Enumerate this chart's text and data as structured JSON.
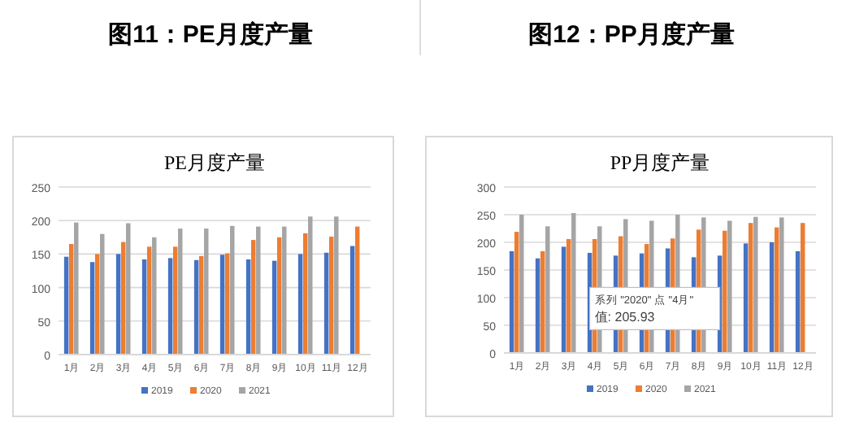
{
  "chart_data": [
    {
      "type": "bar",
      "title": "图11：PE月度产量",
      "subtitle": "PE月度产量",
      "categories": [
        "1月",
        "2月",
        "3月",
        "4月",
        "5月",
        "6月",
        "7月",
        "8月",
        "9月",
        "10月",
        "11月",
        "12月"
      ],
      "ylim": [
        0,
        250
      ],
      "yticks": [
        0,
        50,
        100,
        150,
        200,
        250
      ],
      "grid": "y",
      "legend": "bottom",
      "series": [
        {
          "name": "2019",
          "color": "#4472c4",
          "values": [
            146,
            138,
            150,
            142,
            144,
            141,
            149,
            142,
            140,
            150,
            152,
            162
          ]
        },
        {
          "name": "2020",
          "color": "#ed7d31",
          "values": [
            165,
            150,
            168,
            161,
            161,
            147,
            151,
            171,
            175,
            181,
            176,
            191
          ]
        },
        {
          "name": "2021",
          "color": "#a5a5a5",
          "values": [
            197,
            180,
            196,
            175,
            188,
            188,
            192,
            191,
            191,
            206,
            206,
            null
          ]
        }
      ]
    },
    {
      "type": "bar",
      "title": "图12：PP月度产量",
      "subtitle": "PP月度产量",
      "categories": [
        "1月",
        "2月",
        "3月",
        "4月",
        "5月",
        "6月",
        "7月",
        "8月",
        "9月",
        "10月",
        "11月",
        "12月"
      ],
      "ylim": [
        0,
        300
      ],
      "yticks": [
        0,
        50,
        100,
        150,
        200,
        250,
        300
      ],
      "grid": "y",
      "legend": "bottom",
      "series": [
        {
          "name": "2019",
          "color": "#4472c4",
          "values": [
            184,
            171,
            192,
            181,
            176,
            180,
            189,
            173,
            176,
            198,
            200,
            184
          ]
        },
        {
          "name": "2020",
          "color": "#ed7d31",
          "values": [
            219,
            184,
            206,
            205.93,
            211,
            197,
            207,
            223,
            221,
            235,
            227,
            235
          ]
        },
        {
          "name": "2021",
          "color": "#a5a5a5",
          "values": [
            250,
            229,
            253,
            229,
            242,
            239,
            250,
            245,
            239,
            246,
            245,
            null
          ]
        }
      ],
      "annotations": [
        "系列 \"2020\" 点 \"4月\"\n值: 205.93"
      ]
    }
  ]
}
